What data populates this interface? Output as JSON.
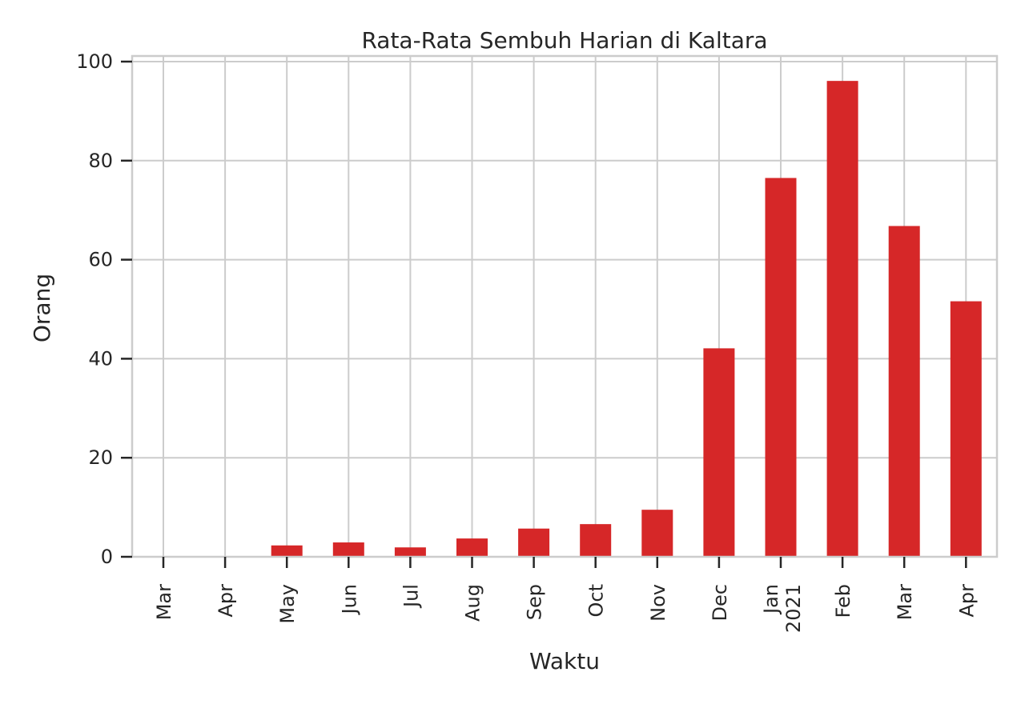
{
  "chart_data": {
    "type": "bar",
    "title": "Rata-Rata Sembuh Harian di Kaltara",
    "xlabel": "Waktu",
    "ylabel": "Orang",
    "categories": [
      {
        "label": "Mar",
        "sublabel": ""
      },
      {
        "label": "Apr",
        "sublabel": ""
      },
      {
        "label": "May",
        "sublabel": ""
      },
      {
        "label": "Jun",
        "sublabel": ""
      },
      {
        "label": "Jul",
        "sublabel": ""
      },
      {
        "label": "Aug",
        "sublabel": ""
      },
      {
        "label": "Sep",
        "sublabel": ""
      },
      {
        "label": "Oct",
        "sublabel": ""
      },
      {
        "label": "Nov",
        "sublabel": ""
      },
      {
        "label": "Dec",
        "sublabel": ""
      },
      {
        "label": "Jan",
        "sublabel": "2021"
      },
      {
        "label": "Feb",
        "sublabel": ""
      },
      {
        "label": "Mar",
        "sublabel": ""
      },
      {
        "label": "Apr",
        "sublabel": ""
      }
    ],
    "values": [
      0,
      0,
      2.3,
      2.9,
      1.9,
      3.7,
      5.7,
      6.6,
      9.5,
      42.1,
      76.5,
      96.1,
      66.8,
      51.6
    ],
    "ylim": [
      0,
      100
    ],
    "yticks": [
      "0",
      "20",
      "40",
      "60",
      "80",
      "100"
    ],
    "grid": true,
    "bar_color": "#d62728"
  }
}
